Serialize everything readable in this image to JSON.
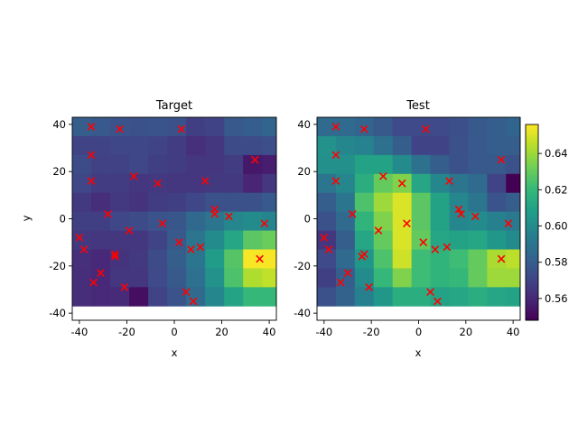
{
  "chart_data": [
    {
      "type": "heatmap",
      "title": "Target",
      "xlabel": "x",
      "ylabel": "y",
      "xlim": [
        -43,
        43
      ],
      "ylim": [
        -43,
        43
      ],
      "xticks": [
        -40,
        -20,
        0,
        20,
        40
      ],
      "yticks": [
        -40,
        -20,
        0,
        20,
        40
      ],
      "grid": false,
      "colormap": "viridis",
      "color_range": [
        0.548,
        0.656
      ],
      "cells": {
        "x_edges": [
          -43,
          -35,
          -27,
          -19,
          -11,
          -3,
          5,
          13,
          21,
          29,
          37,
          43
        ],
        "y_edges": [
          43,
          35,
          27,
          19,
          11,
          3,
          -5,
          -13,
          -21,
          -29,
          -37,
          -43
        ],
        "values": [
          [
            0.58,
            0.578,
            0.576,
            0.575,
            0.576,
            0.575,
            0.568,
            0.57,
            0.578,
            0.58,
            0.583
          ],
          [
            0.57,
            0.57,
            0.571,
            0.571,
            0.57,
            0.567,
            0.563,
            0.565,
            0.573,
            0.573,
            0.574
          ],
          [
            0.573,
            0.569,
            0.569,
            0.571,
            0.568,
            0.567,
            0.565,
            0.565,
            0.567,
            0.555,
            0.557
          ],
          [
            0.571,
            0.567,
            0.567,
            0.565,
            0.566,
            0.565,
            0.565,
            0.566,
            0.566,
            0.559,
            0.565
          ],
          [
            0.566,
            0.562,
            0.566,
            0.564,
            0.567,
            0.568,
            0.571,
            0.575,
            0.575,
            0.575,
            0.578
          ],
          [
            0.568,
            0.568,
            0.571,
            0.573,
            0.576,
            0.577,
            0.584,
            0.59,
            0.598,
            0.6,
            0.597
          ],
          [
            0.566,
            0.565,
            0.565,
            0.565,
            0.57,
            0.578,
            0.59,
            0.6,
            0.612,
            0.628,
            0.631
          ],
          [
            0.563,
            0.56,
            0.564,
            0.566,
            0.573,
            0.58,
            0.59,
            0.607,
            0.627,
            0.655,
            0.655
          ],
          [
            0.562,
            0.56,
            0.565,
            0.565,
            0.572,
            0.578,
            0.588,
            0.603,
            0.625,
            0.643,
            0.646
          ],
          [
            0.562,
            0.56,
            0.561,
            0.552,
            0.57,
            0.576,
            0.585,
            0.598,
            0.611,
            0.62,
            0.62
          ]
        ]
      },
      "points": {
        "x": [
          -35,
          -23,
          3,
          -35,
          34,
          -17,
          -35,
          -7,
          13,
          -28,
          17,
          17,
          23,
          38,
          -40,
          -38,
          -19,
          -5,
          2,
          7,
          11,
          36,
          -31,
          -25,
          -25,
          -34,
          -21,
          5,
          8
        ],
        "y": [
          39,
          38,
          38,
          27,
          25,
          18,
          16,
          15,
          16,
          2,
          4,
          2,
          1,
          -2,
          -8,
          -13,
          -5,
          -2,
          -10,
          -13,
          -12,
          -17,
          -23,
          -16,
          -15,
          -27,
          -29,
          -31,
          -35
        ]
      },
      "marker": "x",
      "marker_color": "#ff0000"
    },
    {
      "type": "heatmap",
      "title": "Test",
      "xlabel": "x",
      "ylabel": "",
      "xlim": [
        -43,
        43
      ],
      "ylim": [
        -43,
        43
      ],
      "xticks": [
        -40,
        -20,
        0,
        20,
        40
      ],
      "yticks": [
        -40,
        -20,
        0,
        20,
        40
      ],
      "grid": false,
      "colormap": "viridis",
      "color_range": [
        0.548,
        0.656
      ],
      "colorbar_ticks": [
        0.56,
        0.58,
        0.6,
        0.62,
        0.64
      ],
      "cells": {
        "x_edges": [
          -43,
          -35,
          -27,
          -19,
          -11,
          -3,
          5,
          13,
          21,
          29,
          37,
          43
        ],
        "y_edges": [
          43,
          35,
          27,
          19,
          11,
          3,
          -5,
          -13,
          -21,
          -29,
          -37,
          -43
        ],
        "values": [
          [
            0.585,
            0.585,
            0.583,
            0.578,
            0.572,
            0.572,
            0.572,
            0.574,
            0.578,
            0.58,
            0.583
          ],
          [
            0.603,
            0.598,
            0.596,
            0.588,
            0.58,
            0.57,
            0.57,
            0.575,
            0.578,
            0.58,
            0.58
          ],
          [
            0.602,
            0.602,
            0.61,
            0.61,
            0.6,
            0.588,
            0.58,
            0.575,
            0.578,
            0.578,
            0.575
          ],
          [
            0.59,
            0.598,
            0.615,
            0.63,
            0.635,
            0.612,
            0.598,
            0.59,
            0.585,
            0.57,
            0.548
          ],
          [
            0.58,
            0.59,
            0.625,
            0.64,
            0.65,
            0.628,
            0.61,
            0.598,
            0.59,
            0.576,
            0.58
          ],
          [
            0.575,
            0.585,
            0.618,
            0.635,
            0.65,
            0.628,
            0.61,
            0.598,
            0.6,
            0.595,
            0.592
          ],
          [
            0.565,
            0.58,
            0.612,
            0.63,
            0.65,
            0.63,
            0.612,
            0.61,
            0.612,
            0.605,
            0.6
          ],
          [
            0.572,
            0.585,
            0.605,
            0.625,
            0.648,
            0.622,
            0.618,
            0.622,
            0.63,
            0.642,
            0.645
          ],
          [
            0.568,
            0.58,
            0.6,
            0.62,
            0.635,
            0.622,
            0.618,
            0.62,
            0.63,
            0.64,
            0.64
          ],
          [
            0.575,
            0.582,
            0.595,
            0.605,
            0.615,
            0.615,
            0.61,
            0.612,
            0.615,
            0.612,
            0.61
          ]
        ]
      },
      "points": {
        "x": [
          -35,
          -23,
          3,
          -35,
          35,
          -15,
          -35,
          -7,
          13,
          -28,
          17,
          18,
          24,
          38,
          -40,
          -38,
          -17,
          -5,
          2,
          7,
          12,
          35,
          -30,
          -24,
          -23,
          -33,
          -21,
          5,
          8
        ],
        "y": [
          39,
          38,
          38,
          27,
          25,
          18,
          16,
          15,
          16,
          2,
          4,
          2,
          1,
          -2,
          -8,
          -13,
          -5,
          -2,
          -10,
          -13,
          -12,
          -17,
          -23,
          -16,
          -15,
          -27,
          -29,
          -31,
          -35
        ]
      },
      "marker": "x",
      "marker_color": "#ff0000"
    }
  ]
}
